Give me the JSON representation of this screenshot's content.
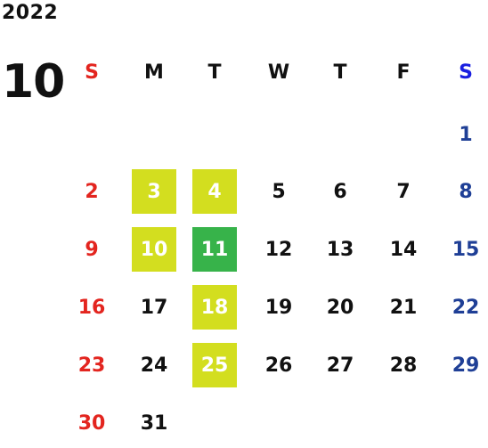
{
  "year": "2022",
  "month": "10",
  "weekdays": [
    "S",
    "M",
    "T",
    "W",
    "T",
    "F",
    "S"
  ],
  "weeks": [
    [
      "",
      "",
      "",
      "",
      "",
      "",
      "1"
    ],
    [
      "2",
      "3",
      "4",
      "5",
      "6",
      "7",
      "8"
    ],
    [
      "9",
      "10",
      "11",
      "12",
      "13",
      "14",
      "15"
    ],
    [
      "16",
      "17",
      "18",
      "19",
      "20",
      "21",
      "22"
    ],
    [
      "23",
      "24",
      "25",
      "26",
      "27",
      "28",
      "29"
    ],
    [
      "30",
      "31",
      "",
      "",
      "",
      "",
      ""
    ]
  ],
  "highlights": {
    "3": "yellow",
    "4": "yellow",
    "10": "yellow",
    "11": "green",
    "18": "yellow",
    "25": "yellow"
  },
  "colors": {
    "sunday": "#e3251f",
    "saturday": "#1f3f96",
    "saturday_header": "#1a1fe0",
    "highlight_yellow": "#d3de1f",
    "highlight_green": "#37b34a"
  }
}
